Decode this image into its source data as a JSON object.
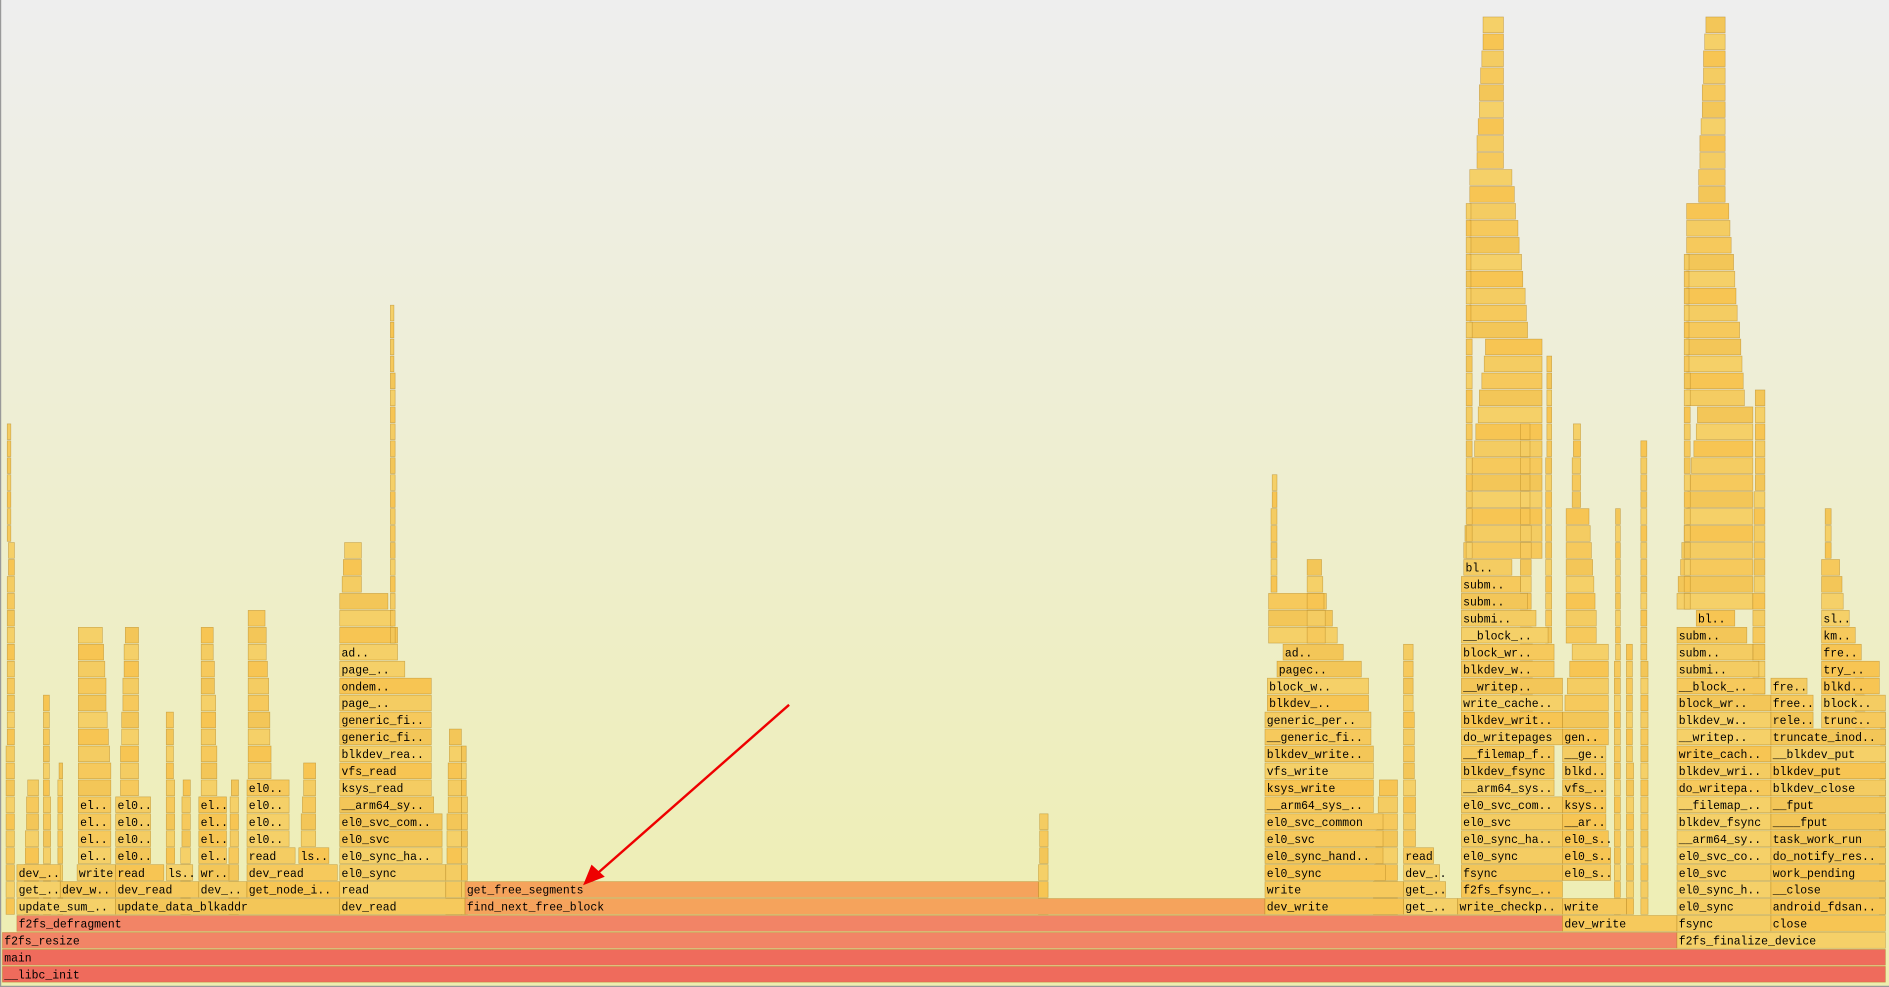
{
  "frames": [
    {
      "label": "__libc_init"
    },
    {
      "label": "main"
    },
    {
      "label": "f2fs_resize"
    },
    {
      "label": "f2fs_finalize_device"
    },
    {
      "label": "f2fs_defragment"
    },
    {
      "label": "dev_write"
    },
    {
      "label": "fsync"
    },
    {
      "label": "close"
    },
    {
      "label": "update_sum_.."
    },
    {
      "label": "update_data_blkaddr"
    },
    {
      "label": "dev_read"
    },
    {
      "label": "find_next_free_block"
    },
    {
      "label": "dev_write"
    },
    {
      "label": "get_.."
    },
    {
      "label": "write_checkp.."
    },
    {
      "label": "write"
    },
    {
      "label": "el0_sync"
    },
    {
      "label": "android_fdsan.."
    },
    {
      "label": "get_.."
    },
    {
      "label": "dev_w.."
    },
    {
      "label": "dev_read"
    },
    {
      "label": "dev_.."
    },
    {
      "label": "get_node_i.."
    },
    {
      "label": "read"
    },
    {
      "label": "get_free_segments"
    },
    {
      "label": "write"
    },
    {
      "label": "get_.."
    },
    {
      "label": "f2fs_fsync_.."
    },
    {
      "label": "el0_sync_h.."
    },
    {
      "label": "__close"
    },
    {
      "label": "dev_.."
    },
    {
      "label": "write"
    },
    {
      "label": "read"
    },
    {
      "label": "ls.."
    },
    {
      "label": "wr.."
    },
    {
      "label": "dev_read"
    },
    {
      "label": "el0_sync"
    },
    {
      "label": "el0_sync"
    },
    {
      "label": "dev_.."
    },
    {
      "label": "fsync"
    },
    {
      "label": "el0_s.."
    },
    {
      "label": "el0_svc"
    },
    {
      "label": "work_pending"
    },
    {
      "label": "el.."
    },
    {
      "label": "el0.."
    },
    {
      "label": "el.."
    },
    {
      "label": "read"
    },
    {
      "label": "ls.."
    },
    {
      "label": "el0_sync_ha.."
    },
    {
      "label": "el0_sync_hand.."
    },
    {
      "label": "read"
    },
    {
      "label": "el0_sync"
    },
    {
      "label": "el0_s.."
    },
    {
      "label": "el0_svc_co.."
    },
    {
      "label": "do_notify_res.."
    },
    {
      "label": "el.."
    },
    {
      "label": "el0.."
    },
    {
      "label": "el.."
    },
    {
      "label": "el0.."
    },
    {
      "label": "el0_svc"
    },
    {
      "label": "el0_svc"
    },
    {
      "label": "el0_sync_ha.."
    },
    {
      "label": "el0_s.."
    },
    {
      "label": "__arm64_sy.."
    },
    {
      "label": "task_work_run"
    },
    {
      "label": "el.."
    },
    {
      "label": "el0.."
    },
    {
      "label": "el.."
    },
    {
      "label": "el0.."
    },
    {
      "label": "el0_svc_com.."
    },
    {
      "label": "el0_svc_common"
    },
    {
      "label": "el0_svc"
    },
    {
      "label": "__ar.."
    },
    {
      "label": "blkdev_fsync"
    },
    {
      "label": "____fput"
    },
    {
      "label": "el.."
    },
    {
      "label": "el0.."
    },
    {
      "label": "el.."
    },
    {
      "label": "el0.."
    },
    {
      "label": "__arm64_sy.."
    },
    {
      "label": "__arm64_sys_.."
    },
    {
      "label": "el0_svc_com.."
    },
    {
      "label": "ksys.."
    },
    {
      "label": "__filemap_.."
    },
    {
      "label": "__fput"
    },
    {
      "label": "el0.."
    },
    {
      "label": "ksys_read"
    },
    {
      "label": "ksys_write"
    },
    {
      "label": "__arm64_sys.."
    },
    {
      "label": "vfs_.."
    },
    {
      "label": "do_writepa.."
    },
    {
      "label": "blkdev_close"
    },
    {
      "label": "vfs_read"
    },
    {
      "label": "vfs_write"
    },
    {
      "label": "blkdev_fsync"
    },
    {
      "label": "blkd.."
    },
    {
      "label": "blkdev_wri.."
    },
    {
      "label": "blkdev_put"
    },
    {
      "label": "blkdev_rea.."
    },
    {
      "label": "blkdev_write.."
    },
    {
      "label": "__filemap_f.."
    },
    {
      "label": "__ge.."
    },
    {
      "label": "write_cach.."
    },
    {
      "label": "__blkdev_put"
    },
    {
      "label": "generic_fi.."
    },
    {
      "label": "__generic_fi.."
    },
    {
      "label": "do_writepages"
    },
    {
      "label": "gen.."
    },
    {
      "label": "__writep.."
    },
    {
      "label": "truncate_inod.."
    },
    {
      "label": "generic_fi.."
    },
    {
      "label": "generic_per.."
    },
    {
      "label": "blkdev_writ.."
    },
    {
      "label": "blkdev_w.."
    },
    {
      "label": "rele.."
    },
    {
      "label": "trunc.."
    },
    {
      "label": "page_.."
    },
    {
      "label": "blkdev_.."
    },
    {
      "label": "write_cache.."
    },
    {
      "label": "block_wr.."
    },
    {
      "label": "free.."
    },
    {
      "label": "block.."
    },
    {
      "label": "ondem.."
    },
    {
      "label": "block_w.."
    },
    {
      "label": "__writep.."
    },
    {
      "label": "__block_.."
    },
    {
      "label": "fre.."
    },
    {
      "label": "blkd.."
    },
    {
      "label": "page_.."
    },
    {
      "label": "pagec.."
    },
    {
      "label": "blkdev_w.."
    },
    {
      "label": "submi.."
    },
    {
      "label": "try_.."
    },
    {
      "label": "ad.."
    },
    {
      "label": "ad.."
    },
    {
      "label": "block_wr.."
    },
    {
      "label": "subm.."
    },
    {
      "label": "fre.."
    },
    {
      "label": "__block_.."
    },
    {
      "label": "subm.."
    },
    {
      "label": "km.."
    },
    {
      "label": "submi.."
    },
    {
      "label": "bl.."
    },
    {
      "label": "sl.."
    },
    {
      "label": "subm.."
    },
    {
      "label": "subm.."
    },
    {
      "label": "bl.."
    }
  ]
}
